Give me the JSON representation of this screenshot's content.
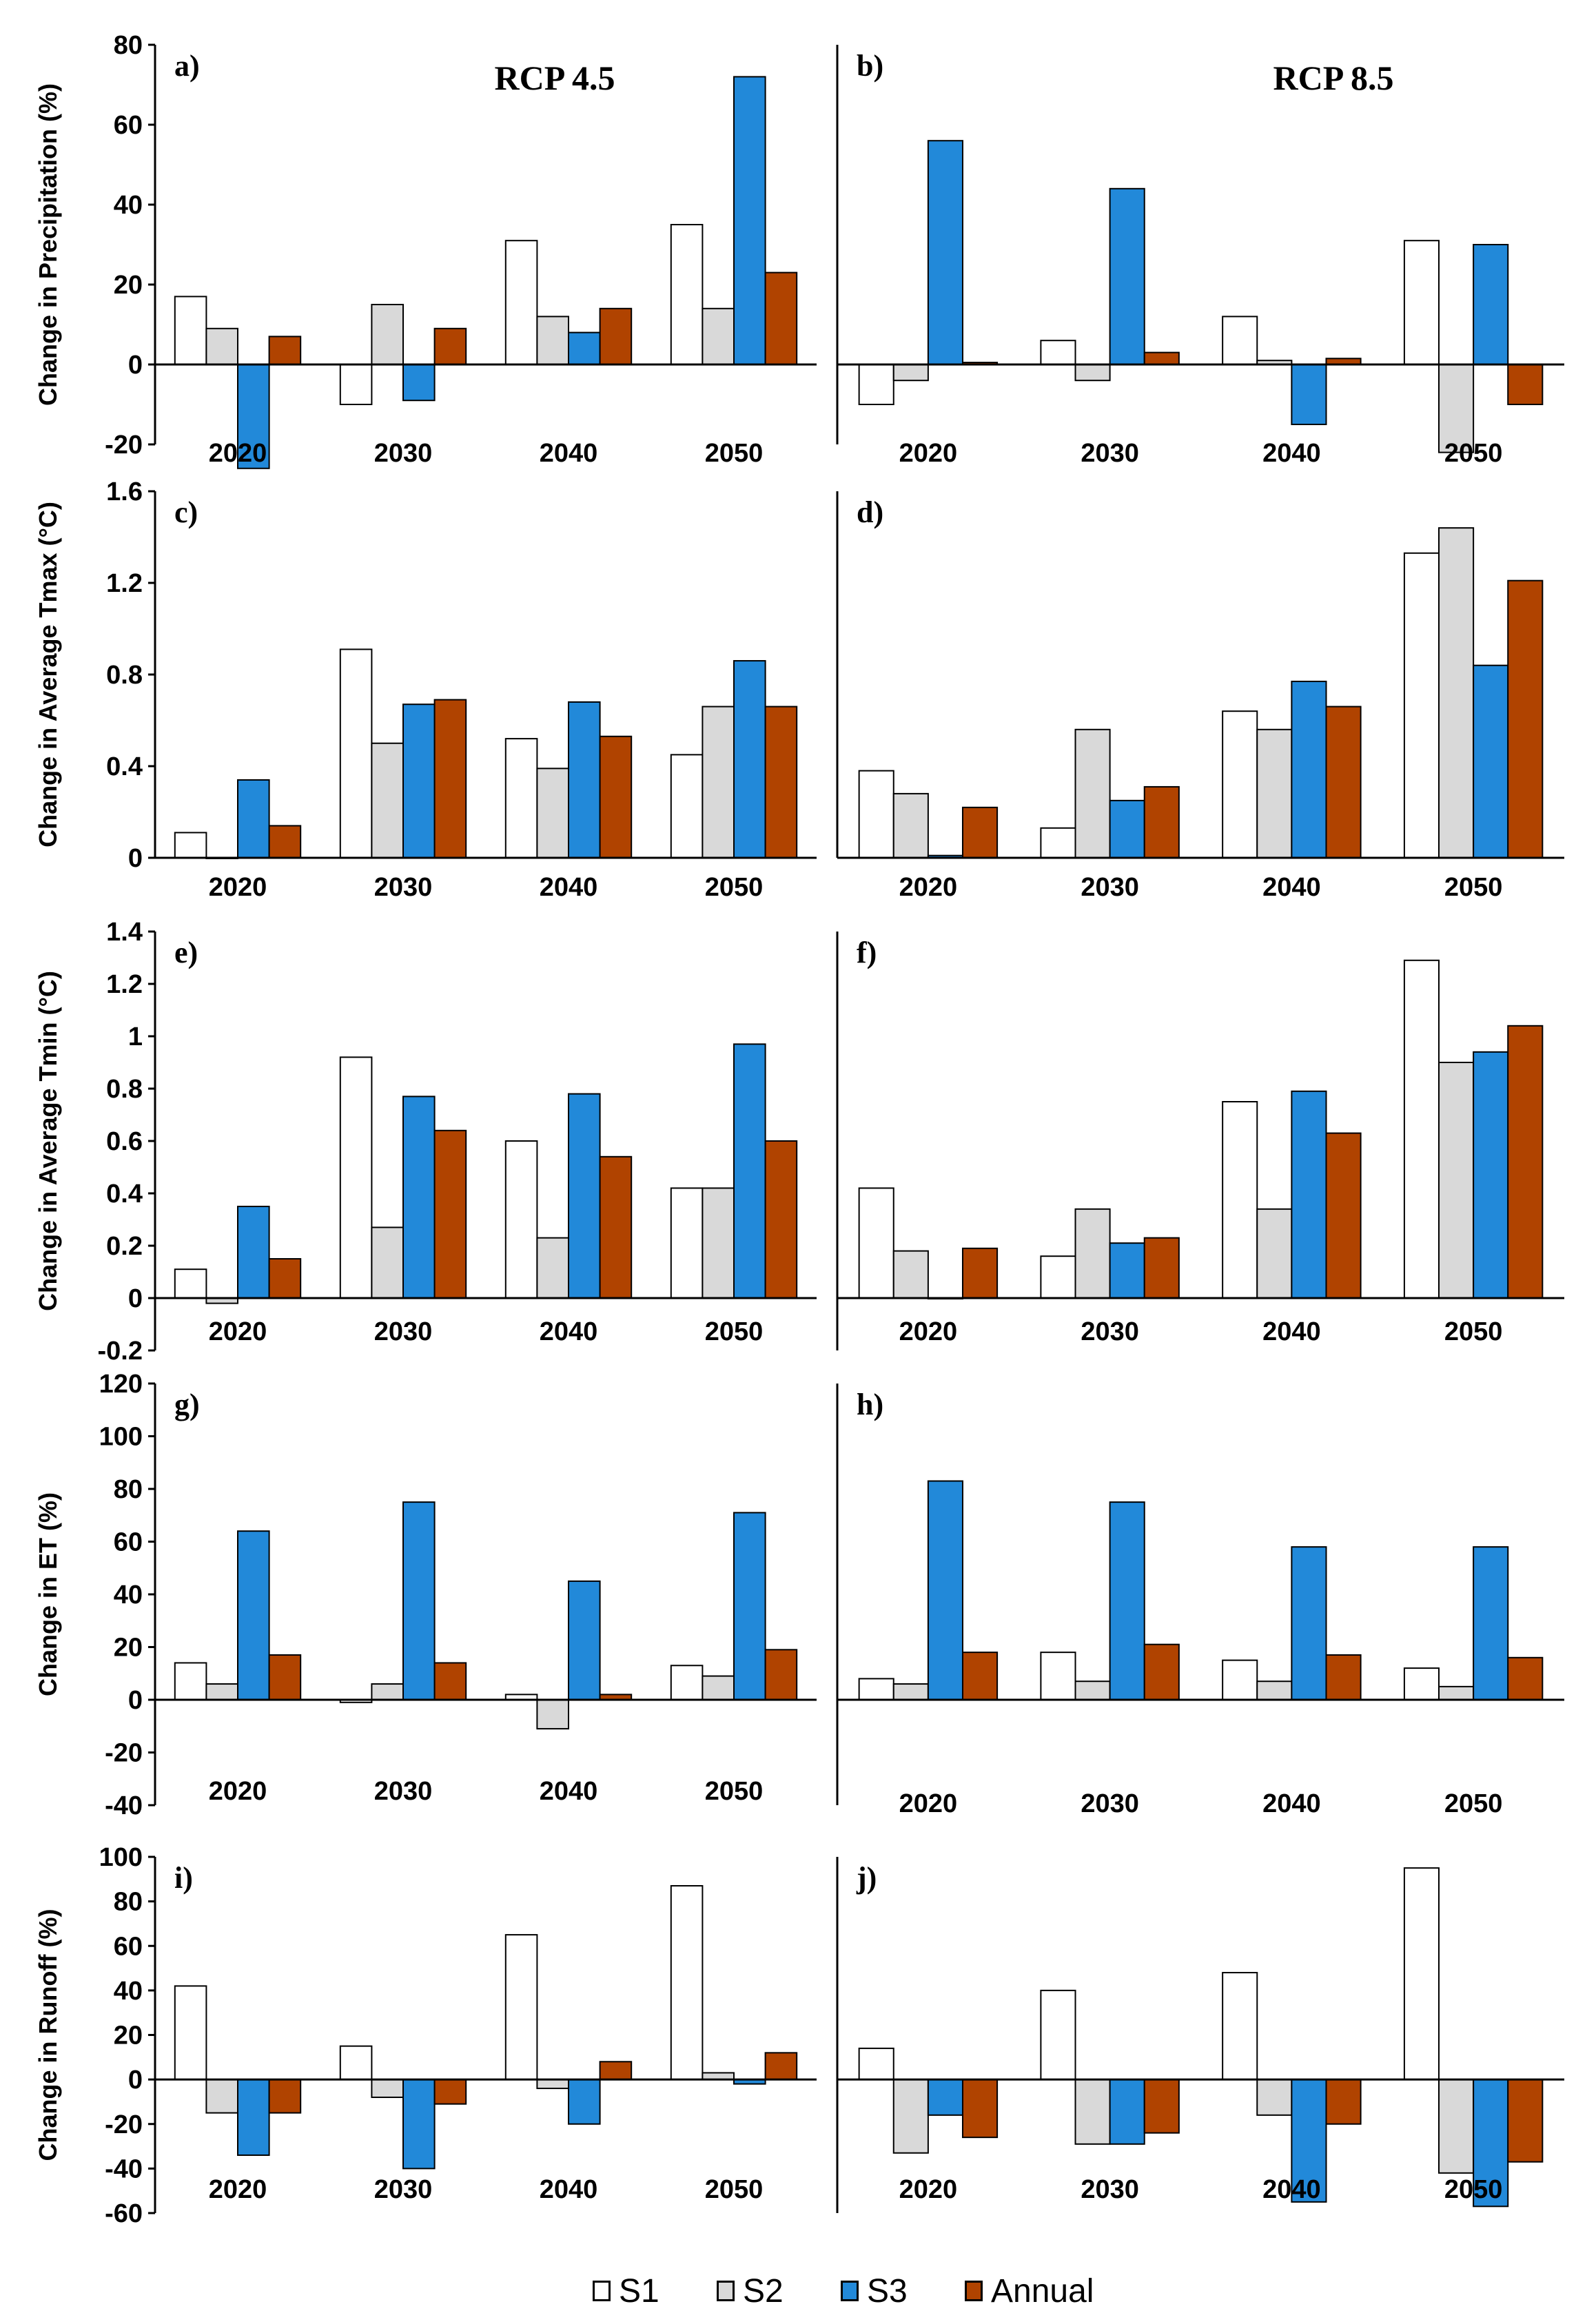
{
  "legend": [
    {
      "name": "S1",
      "color": "#ffffff"
    },
    {
      "name": "S2",
      "color": "#d9d9d9"
    },
    {
      "name": "S3",
      "color": "#2289d9"
    },
    {
      "name": "Annual",
      "color": "#b04300"
    }
  ],
  "chart_data": [
    {
      "panel": "a)",
      "title": "RCP 4.5",
      "type": "bar",
      "ylabel": "Change in Precipitation (%)",
      "ylim": [
        -20,
        80
      ],
      "yticks": [
        -20,
        0,
        20,
        40,
        60,
        80
      ],
      "categories": [
        "2020",
        "2030",
        "2040",
        "2050"
      ],
      "series": [
        {
          "name": "S1",
          "values": [
            17,
            -10,
            31,
            35
          ]
        },
        {
          "name": "S2",
          "values": [
            9,
            15,
            12,
            14
          ]
        },
        {
          "name": "S3",
          "values": [
            -26,
            -9,
            8,
            72
          ]
        },
        {
          "name": "Annual",
          "values": [
            7,
            9,
            14,
            23
          ]
        }
      ]
    },
    {
      "panel": "b)",
      "title": "RCP 8.5",
      "type": "bar",
      "ylabel": "",
      "ylim": [
        -20,
        80
      ],
      "yticks": [],
      "categories": [
        "2020",
        "2030",
        "2040",
        "2050"
      ],
      "series": [
        {
          "name": "S1",
          "values": [
            -10,
            6,
            12,
            31
          ]
        },
        {
          "name": "S2",
          "values": [
            -4,
            -4,
            1,
            -22
          ]
        },
        {
          "name": "S3",
          "values": [
            56,
            44,
            -15,
            30
          ]
        },
        {
          "name": "Annual",
          "values": [
            0.5,
            3,
            1.5,
            -10
          ]
        }
      ]
    },
    {
      "panel": "c)",
      "title": "",
      "type": "bar",
      "ylabel": "Change in Average Tmax (°C)",
      "ylim": [
        0,
        1.6
      ],
      "yticks": [
        "0",
        "0.4",
        "0.8",
        "1.2",
        "1.6"
      ],
      "categories": [
        "2020",
        "2030",
        "2040",
        "2050"
      ],
      "series": [
        {
          "name": "S1",
          "values": [
            0.11,
            0.91,
            0.52,
            0.45
          ]
        },
        {
          "name": "S2",
          "values": [
            0.0,
            0.5,
            0.39,
            0.66
          ]
        },
        {
          "name": "S3",
          "values": [
            0.34,
            0.67,
            0.68,
            0.86
          ]
        },
        {
          "name": "Annual",
          "values": [
            0.14,
            0.69,
            0.53,
            0.66
          ]
        }
      ]
    },
    {
      "panel": "d)",
      "title": "",
      "type": "bar",
      "ylabel": "",
      "ylim": [
        0,
        1.6
      ],
      "yticks": [],
      "categories": [
        "2020",
        "2030",
        "2040",
        "2050"
      ],
      "series": [
        {
          "name": "S1",
          "values": [
            0.38,
            0.13,
            0.64,
            1.33
          ]
        },
        {
          "name": "S2",
          "values": [
            0.28,
            0.56,
            0.56,
            1.44
          ]
        },
        {
          "name": "S3",
          "values": [
            0.01,
            0.25,
            0.77,
            0.84
          ]
        },
        {
          "name": "Annual",
          "values": [
            0.22,
            0.31,
            0.66,
            1.21
          ]
        }
      ]
    },
    {
      "panel": "e)",
      "title": "",
      "type": "bar",
      "ylabel": "Change in Average Tmin (°C)",
      "ylim": [
        -0.2,
        1.4
      ],
      "yticks": [
        "-0.2",
        "0",
        "0.2",
        "0.4",
        "0.6",
        "0.8",
        "1",
        "1.2",
        "1.4"
      ],
      "categories": [
        "2020",
        "2030",
        "2040",
        "2050"
      ],
      "series": [
        {
          "name": "S1",
          "values": [
            0.11,
            0.92,
            0.6,
            0.42
          ]
        },
        {
          "name": "S2",
          "values": [
            -0.02,
            0.27,
            0.23,
            0.42
          ]
        },
        {
          "name": "S3",
          "values": [
            0.35,
            0.77,
            0.78,
            0.97
          ]
        },
        {
          "name": "Annual",
          "values": [
            0.15,
            0.64,
            0.54,
            0.6
          ]
        }
      ]
    },
    {
      "panel": "f)",
      "title": "",
      "type": "bar",
      "ylabel": "",
      "ylim": [
        -0.2,
        1.4
      ],
      "yticks": [],
      "categories": [
        "2020",
        "2030",
        "2040",
        "2050"
      ],
      "series": [
        {
          "name": "S1",
          "values": [
            0.42,
            0.16,
            0.75,
            1.29
          ]
        },
        {
          "name": "S2",
          "values": [
            0.18,
            0.34,
            0.34,
            0.9
          ]
        },
        {
          "name": "S3",
          "values": [
            0.0,
            0.21,
            0.79,
            0.94
          ]
        },
        {
          "name": "Annual",
          "values": [
            0.19,
            0.23,
            0.63,
            1.04
          ]
        }
      ]
    },
    {
      "panel": "g)",
      "title": "",
      "type": "bar",
      "ylabel": "Change in ET (%)",
      "ylim": [
        -40,
        120
      ],
      "yticks": [
        "-40",
        "-20",
        "0",
        "20",
        "40",
        "60",
        "80",
        "100",
        "120"
      ],
      "categories": [
        "2020",
        "2030",
        "2040",
        "2050"
      ],
      "series": [
        {
          "name": "S1",
          "values": [
            14,
            -1,
            2,
            13
          ]
        },
        {
          "name": "S2",
          "values": [
            6,
            6,
            -11,
            9
          ]
        },
        {
          "name": "S3",
          "values": [
            64,
            75,
            45,
            71
          ]
        },
        {
          "name": "Annual",
          "values": [
            17,
            14,
            2,
            19
          ]
        }
      ]
    },
    {
      "panel": "h)",
      "title": "",
      "type": "bar",
      "ylabel": "",
      "ylim": [
        -40,
        120
      ],
      "yticks": [],
      "categories": [
        "2020",
        "2030",
        "2040",
        "2050"
      ],
      "series": [
        {
          "name": "S1",
          "values": [
            8,
            18,
            15,
            12
          ]
        },
        {
          "name": "S2",
          "values": [
            6,
            7,
            7,
            5
          ]
        },
        {
          "name": "S3",
          "values": [
            83,
            75,
            58,
            58
          ]
        },
        {
          "name": "Annual",
          "values": [
            18,
            21,
            17,
            16
          ]
        }
      ]
    },
    {
      "panel": "i)",
      "title": "",
      "type": "bar",
      "ylabel": "Change in Runoff (%)",
      "ylim": [
        -60,
        100
      ],
      "yticks": [
        "-60",
        "-40",
        "-20",
        "0",
        "20",
        "40",
        "60",
        "80",
        "100"
      ],
      "categories": [
        "2020",
        "2030",
        "2040",
        "2050"
      ],
      "series": [
        {
          "name": "S1",
          "values": [
            42,
            15,
            65,
            87
          ]
        },
        {
          "name": "S2",
          "values": [
            -15,
            -8,
            -4,
            3
          ]
        },
        {
          "name": "S3",
          "values": [
            -34,
            -40,
            -20,
            -2
          ]
        },
        {
          "name": "Annual",
          "values": [
            -15,
            -11,
            8,
            12
          ]
        }
      ]
    },
    {
      "panel": "j)",
      "title": "",
      "type": "bar",
      "ylabel": "",
      "ylim": [
        -60,
        100
      ],
      "yticks": [],
      "categories": [
        "2020",
        "2030",
        "2040",
        "2050"
      ],
      "series": [
        {
          "name": "S1",
          "values": [
            14,
            40,
            48,
            95
          ]
        },
        {
          "name": "S2",
          "values": [
            -33,
            -29,
            -16,
            -42
          ]
        },
        {
          "name": "S3",
          "values": [
            -16,
            -29,
            -55,
            -57
          ]
        },
        {
          "name": "Annual",
          "values": [
            -26,
            -24,
            -20,
            -37
          ]
        }
      ]
    }
  ]
}
